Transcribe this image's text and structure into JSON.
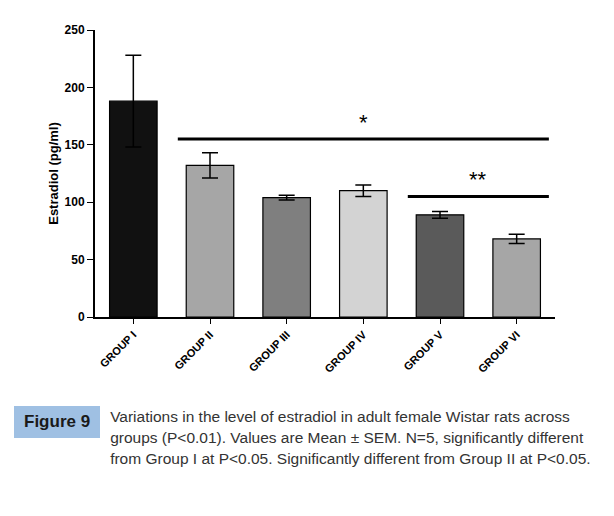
{
  "chart_data": {
    "type": "bar",
    "categories": [
      "GROUP I",
      "GROUP II",
      "GROUP III",
      "GROUP IV",
      "GROUP V",
      "GROUP VI"
    ],
    "values": [
      188,
      132,
      104,
      110,
      89,
      68
    ],
    "errors": [
      40,
      11,
      2,
      5,
      3,
      4
    ],
    "colors": [
      "#111111",
      "#a6a6a6",
      "#7f7f7f",
      "#d3d3d3",
      "#5a5a5a",
      "#a6a6a6"
    ],
    "y_label": "Estradiol (pg/ml)",
    "ylim": [
      0,
      250
    ],
    "yticks": [
      0,
      50,
      100,
      150,
      200,
      250
    ],
    "grid": false,
    "annotations": [
      {
        "text": "*",
        "start": "GROUP II",
        "end": "GROUP VI",
        "y": 155
      },
      {
        "text": "**",
        "start": "GROUP V",
        "end": "GROUP VI",
        "y": 105
      }
    ],
    "caption": {
      "label": "Figure 9",
      "text": "Variations in the level of estradiol in adult female Wistar rats across groups (P<0.01). Values are Mean ± SEM. N=5, significantly different from Group I at P<0.05. Significantly different from Group II at P<0.05."
    }
  }
}
